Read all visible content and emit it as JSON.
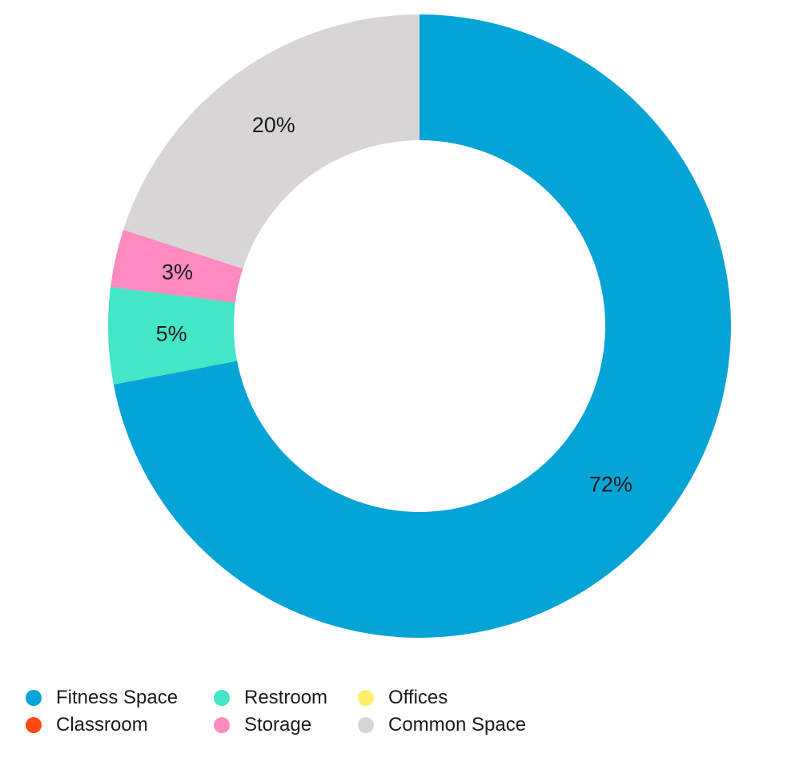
{
  "chart_data": {
    "type": "pie",
    "variant": "donut",
    "title": "",
    "slices": [
      {
        "name": "Fitness Space",
        "value": 72,
        "label": "72%",
        "color": "#04a4d6"
      },
      {
        "name": "Classroom",
        "value": 0,
        "label": "",
        "color": "#ff4a12"
      },
      {
        "name": "Restroom",
        "value": 5,
        "label": "5%",
        "color": "#43e6c7"
      },
      {
        "name": "Storage",
        "value": 3,
        "label": "3%",
        "color": "#ff8ac0"
      },
      {
        "name": "Offices",
        "value": 0,
        "label": "",
        "color": "#ffef6b"
      },
      {
        "name": "Common Space",
        "value": 20,
        "label": "20%",
        "color": "#d7d5d6"
      }
    ],
    "legend": {
      "placement": "bottom-left",
      "order": [
        "Fitness Space",
        "Restroom",
        "Offices",
        "Classroom",
        "Storage",
        "Common Space"
      ]
    }
  }
}
